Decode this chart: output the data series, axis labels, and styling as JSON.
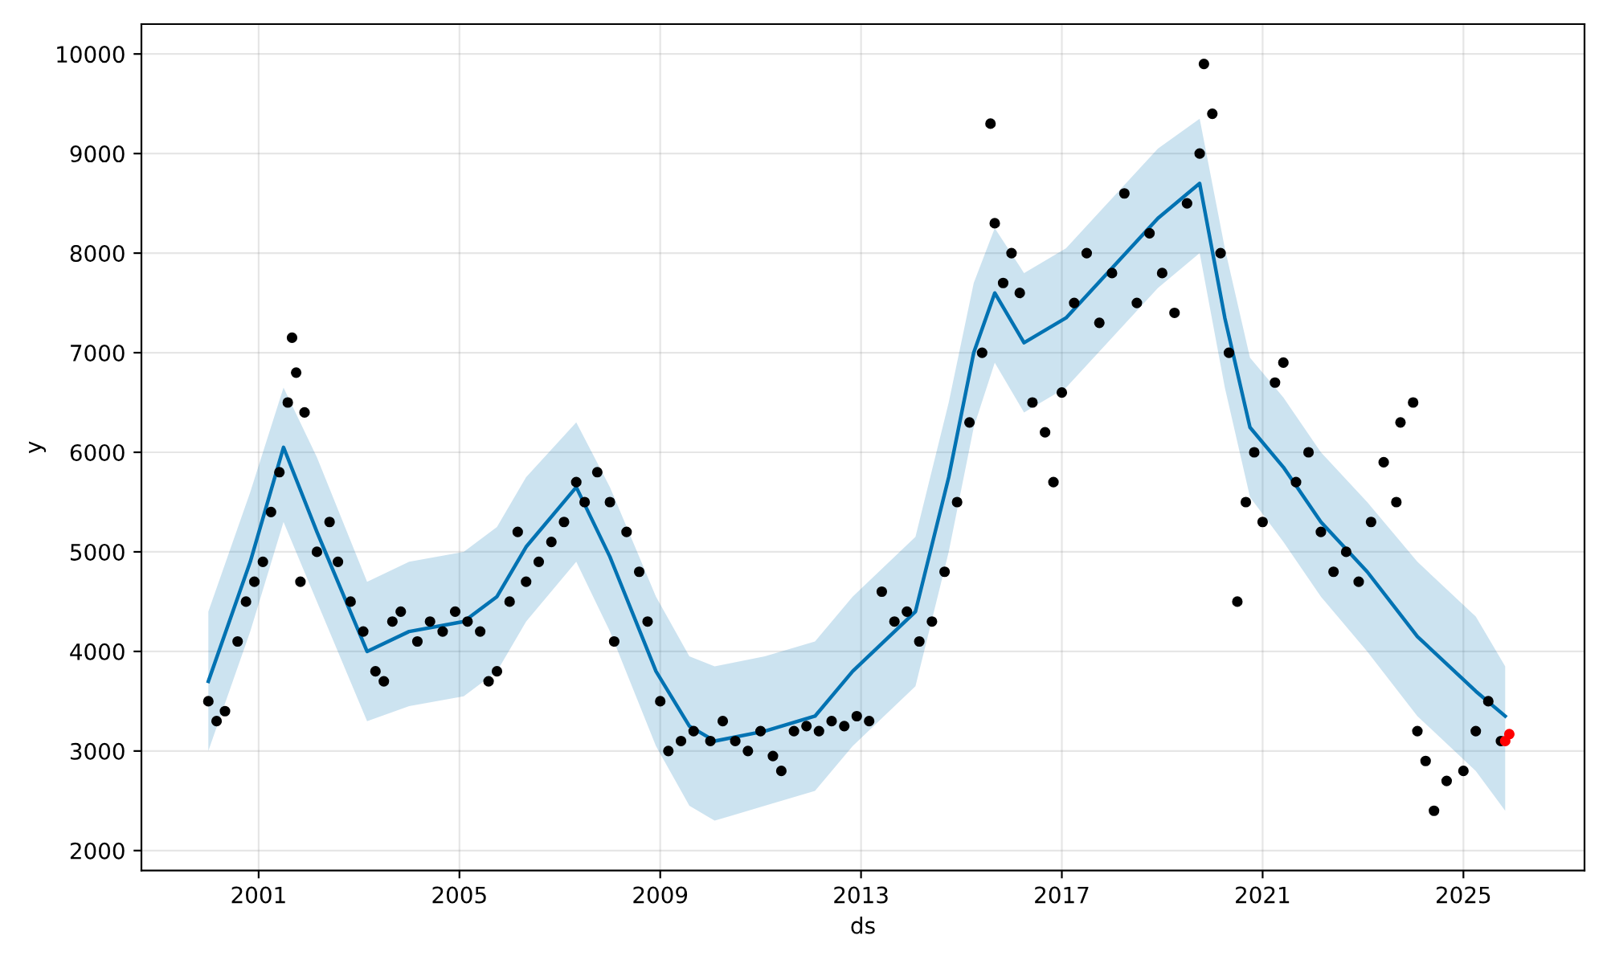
{
  "chart_data": {
    "type": "line",
    "xlabel": "ds",
    "ylabel": "y",
    "xlim": [
      "1998-09",
      "2027-06"
    ],
    "ylim": [
      1800,
      10300
    ],
    "xticks": [
      {
        "value": "2001",
        "label": "2001"
      },
      {
        "value": "2005",
        "label": "2005"
      },
      {
        "value": "2009",
        "label": "2009"
      },
      {
        "value": "2013",
        "label": "2013"
      },
      {
        "value": "2017",
        "label": "2017"
      },
      {
        "value": "2021",
        "label": "2021"
      },
      {
        "value": "2025",
        "label": "2025"
      }
    ],
    "yticks": [
      2000,
      3000,
      4000,
      5000,
      6000,
      7000,
      8000,
      9000,
      10000
    ],
    "grid": true,
    "series": [
      {
        "color": "#0072b2",
        "x": [
          "2000-01",
          "2000-11",
          "2001-07",
          "2002-03",
          "2003-03",
          "2004-01",
          "2005-02",
          "2005-10",
          "2006-05",
          "2007-05",
          "2008-01",
          "2008-12",
          "2009-08",
          "2010-02",
          "2011-02",
          "2012-02",
          "2012-11",
          "2014-02",
          "2014-10",
          "2015-04",
          "2015-09",
          "2016-04",
          "2017-02",
          "2018-01",
          "2018-12",
          "2019-10",
          "2020-04",
          "2020-10",
          "2021-06",
          "2022-03",
          "2023-02",
          "2024-02",
          "2025-04",
          "2025-11"
        ],
        "values": [
          3700,
          4900,
          6050,
          5200,
          4000,
          4200,
          4300,
          4550,
          5050,
          5650,
          4950,
          3800,
          3250,
          3100,
          3200,
          3350,
          3800,
          4400,
          5750,
          7000,
          7600,
          7100,
          7350,
          7850,
          8350,
          8700,
          7350,
          6250,
          5850,
          5300,
          4800,
          4150,
          3600,
          3350
        ],
        "lower": [
          3000,
          4200,
          5300,
          4500,
          3300,
          3450,
          3550,
          3800,
          4300,
          4900,
          4200,
          3050,
          2450,
          2300,
          2450,
          2600,
          3050,
          3650,
          5000,
          6250,
          6900,
          6400,
          6650,
          7150,
          7650,
          8000,
          6650,
          5550,
          5100,
          4550,
          4000,
          3350,
          2800,
          2400
        ],
        "upper": [
          4400,
          5600,
          6650,
          5950,
          4700,
          4900,
          5000,
          5250,
          5750,
          6300,
          5650,
          4550,
          3950,
          3850,
          3950,
          4100,
          4550,
          5150,
          6500,
          7700,
          8250,
          7800,
          8050,
          8550,
          9050,
          9350,
          8050,
          6950,
          6550,
          6000,
          5500,
          4900,
          4350,
          3850
        ]
      },
      {
        "type": "scatter",
        "color": "#000000",
        "x": [
          "2000-01",
          "2000-03",
          "2000-05",
          "2000-08",
          "2000-10",
          "2000-12",
          "2001-02",
          "2001-04",
          "2001-06",
          "2001-08",
          "2001-09",
          "2001-10",
          "2001-11",
          "2001-12",
          "2002-03",
          "2002-06",
          "2002-08",
          "2002-11",
          "2003-02",
          "2003-05",
          "2003-07",
          "2003-09",
          "2003-11",
          "2004-03",
          "2004-06",
          "2004-09",
          "2004-12",
          "2005-03",
          "2005-06",
          "2005-08",
          "2005-10",
          "2006-01",
          "2006-03",
          "2006-05",
          "2006-08",
          "2006-11",
          "2007-02",
          "2007-05",
          "2007-07",
          "2007-10",
          "2008-01",
          "2008-02",
          "2008-05",
          "2008-08",
          "2008-10",
          "2009-01",
          "2009-03",
          "2009-06",
          "2009-09",
          "2010-01",
          "2010-04",
          "2010-07",
          "2010-10",
          "2011-01",
          "2011-04",
          "2011-06",
          "2011-09",
          "2011-12",
          "2012-03",
          "2012-06",
          "2012-09",
          "2012-12",
          "2013-03",
          "2013-06",
          "2013-09",
          "2013-12",
          "2014-03",
          "2014-06",
          "2014-09",
          "2014-12",
          "2015-03",
          "2015-06",
          "2015-08",
          "2015-09",
          "2015-11",
          "2016-01",
          "2016-03",
          "2016-06",
          "2016-09",
          "2016-11",
          "2017-01",
          "2017-04",
          "2017-07",
          "2017-10",
          "2018-01",
          "2018-04",
          "2018-07",
          "2018-10",
          "2019-01",
          "2019-04",
          "2019-07",
          "2019-10",
          "2019-11",
          "2020-01",
          "2020-03",
          "2020-05",
          "2020-07",
          "2020-09",
          "2020-11",
          "2021-01",
          "2021-04",
          "2021-06",
          "2021-09",
          "2021-12",
          "2022-03",
          "2022-06",
          "2022-09",
          "2022-12",
          "2023-03",
          "2023-06",
          "2023-09",
          "2023-10",
          "2024-01",
          "2024-02",
          "2024-04",
          "2024-06",
          "2024-09",
          "2025-01",
          "2025-04",
          "2025-07",
          "2025-10"
        ],
        "values": [
          3500,
          3300,
          3400,
          4100,
          4500,
          4700,
          4900,
          5400,
          5800,
          6500,
          7150,
          6800,
          4700,
          6400,
          5000,
          5300,
          4900,
          4500,
          4200,
          3800,
          3700,
          4300,
          4400,
          4100,
          4300,
          4200,
          4400,
          4300,
          4200,
          3700,
          3800,
          4500,
          5200,
          4700,
          4900,
          5100,
          5300,
          5700,
          5500,
          5800,
          5500,
          4100,
          5200,
          4800,
          4300,
          3500,
          3000,
          3100,
          3200,
          3100,
          3300,
          3100,
          3000,
          3200,
          2950,
          2800,
          3200,
          3250,
          3200,
          3300,
          3250,
          3350,
          3300,
          4600,
          4300,
          4400,
          4100,
          4300,
          4800,
          5500,
          6300,
          7000,
          9300,
          8300,
          7700,
          8000,
          7600,
          6500,
          6200,
          5700,
          6600,
          7500,
          8000,
          7300,
          7800,
          8600,
          7500,
          8200,
          7800,
          7400,
          8500,
          9000,
          9900,
          9400,
          8000,
          7000,
          4500,
          5500,
          6000,
          5300,
          6700,
          6900,
          5700,
          6000,
          5200,
          4800,
          5000,
          4700,
          5300,
          5900,
          5500,
          6300,
          6500,
          3200,
          2900,
          2400,
          2700,
          2800,
          3200,
          3500,
          3100
        ]
      },
      {
        "type": "scatter",
        "color": "#ff0000",
        "x": [
          "2025-11",
          "2025-12"
        ],
        "values": [
          3100,
          3170
        ]
      }
    ]
  }
}
